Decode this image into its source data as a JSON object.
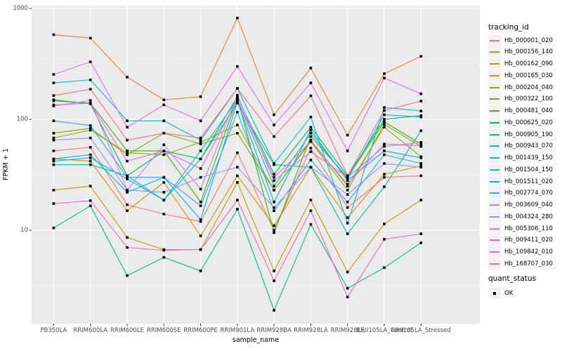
{
  "chart_data": {
    "type": "line",
    "title": "",
    "xlabel": "sample_name",
    "ylabel": "FPKM + 1",
    "legend_title": "tracking_id",
    "point_legend": {
      "title": "quant_status",
      "label": "OK"
    },
    "y_scale": "log10",
    "grid": true,
    "legend_position": "right",
    "panel_bg": "#EBEBEB",
    "grid_color": "#FFFFFF",
    "point_color": "#000000",
    "tick_color": "#333333",
    "y_ticks": [
      10,
      100,
      1000
    ],
    "y_minor_ticks": [
      3.162,
      31.62,
      316.2
    ],
    "ylim": [
      1.45,
      1060
    ],
    "categories": [
      "PB350LA",
      "RRIM600LA",
      "RRIM600LE",
      "RRIM600SE",
      "RRIM600PE",
      "RRIM901LA",
      "RRIM928BA",
      "RRIM928LA",
      "RRIM928LE",
      "RRII105LA_Control",
      "RRII105LA_Stressed"
    ],
    "series": [
      {
        "name": "Hb_000001_020",
        "color": "#F8766D",
        "values": [
          52,
          56,
          17,
          14,
          12,
          50,
          10,
          55,
          16,
          30,
          31
        ]
      },
      {
        "name": "Hb_000156_140",
        "color": "#EA8331",
        "values": [
          580,
          540,
          240,
          150,
          160,
          820,
          110,
          290,
          72,
          258,
          370
        ]
      },
      {
        "name": "Hb_000162_090",
        "color": "#D89000",
        "values": [
          44,
          42,
          15,
          27,
          8.9,
          31,
          11,
          37,
          13,
          32,
          38
        ]
      },
      {
        "name": "Hb_000165_030",
        "color": "#C09B00",
        "values": [
          23,
          25,
          8.6,
          6.7,
          6.7,
          27,
          4.3,
          18.7,
          4.2,
          11.4,
          18.7
        ]
      },
      {
        "name": "Hb_000204_040",
        "color": "#A3A500",
        "values": [
          68,
          80,
          50,
          48,
          62,
          89,
          23,
          65,
          25,
          85,
          46
        ]
      },
      {
        "name": "Hb_000322_100",
        "color": "#7CAE00",
        "values": [
          75,
          83,
          48,
          75,
          60,
          75,
          23,
          63,
          23,
          90,
          57
        ]
      },
      {
        "name": "Hb_000481_040",
        "color": "#39B600",
        "values": [
          147,
          140,
          52,
          52,
          18,
          155,
          9.5,
          70,
          30,
          95,
          60
        ]
      },
      {
        "name": "Hb_000625_020",
        "color": "#00BB4E",
        "values": [
          150,
          138,
          31,
          52,
          44,
          160,
          32,
          85,
          31,
          100,
          108
        ]
      },
      {
        "name": "Hb_000905_190",
        "color": "#00BF7D",
        "values": [
          10.5,
          16.6,
          3.9,
          5.7,
          4.3,
          15.5,
          1.9,
          11.3,
          3.0,
          4.6,
          7.7
        ]
      },
      {
        "name": "Hb_000943_070",
        "color": "#00C1A3",
        "values": [
          39,
          39,
          31,
          18.7,
          44,
          140,
          39,
          37,
          9.3,
          24.7,
          79
        ]
      },
      {
        "name": "Hb_001439_150",
        "color": "#00BFC4",
        "values": [
          213,
          227,
          97,
          97,
          65,
          190,
          40,
          105,
          11.6,
          128,
          119
        ]
      },
      {
        "name": "Hb_001504_150",
        "color": "#00BAE0",
        "values": [
          42,
          45,
          29,
          18.7,
          52,
          150,
          25,
          75,
          29,
          110,
          105
        ]
      },
      {
        "name": "Hb_001511_020",
        "color": "#00B0F6",
        "values": [
          44,
          48,
          22,
          30,
          12.5,
          145,
          18,
          80,
          28,
          52,
          45
        ]
      },
      {
        "name": "Hb_002774_070",
        "color": "#35A2FF",
        "values": [
          97,
          88,
          30,
          30,
          16.6,
          116,
          15,
          43,
          18,
          48,
          40
        ]
      },
      {
        "name": "Hb_003609_040",
        "color": "#9590FF",
        "values": [
          65,
          68,
          23,
          22,
          30,
          37,
          16,
          37,
          21,
          40,
          37
        ]
      },
      {
        "name": "Hb_004324_280",
        "color": "#C77CFF",
        "values": [
          132,
          148,
          23,
          59,
          23.5,
          165,
          28,
          51,
          30,
          57,
          62
        ]
      },
      {
        "name": "Hb_005306_110",
        "color": "#E76BF3",
        "values": [
          254,
          330,
          85,
          135,
          97,
          300,
          89,
          213,
          52,
          236,
          170
        ]
      },
      {
        "name": "Hb_009411_020",
        "color": "#FA62DB",
        "values": [
          135,
          140,
          42,
          52,
          36,
          150,
          30,
          63,
          26,
          60,
          58
        ]
      },
      {
        "name": "Hb_109842_010",
        "color": "#FF62BC",
        "values": [
          17.4,
          18.5,
          7.0,
          6.6,
          6.7,
          18.7,
          3.5,
          15,
          2.5,
          8.3,
          9.3
        ]
      },
      {
        "name": "Hb_168707_030",
        "color": "#FF6A98",
        "values": [
          164,
          187,
          65,
          75,
          68,
          190,
          70,
          163,
          31,
          120,
          146
        ]
      }
    ]
  }
}
